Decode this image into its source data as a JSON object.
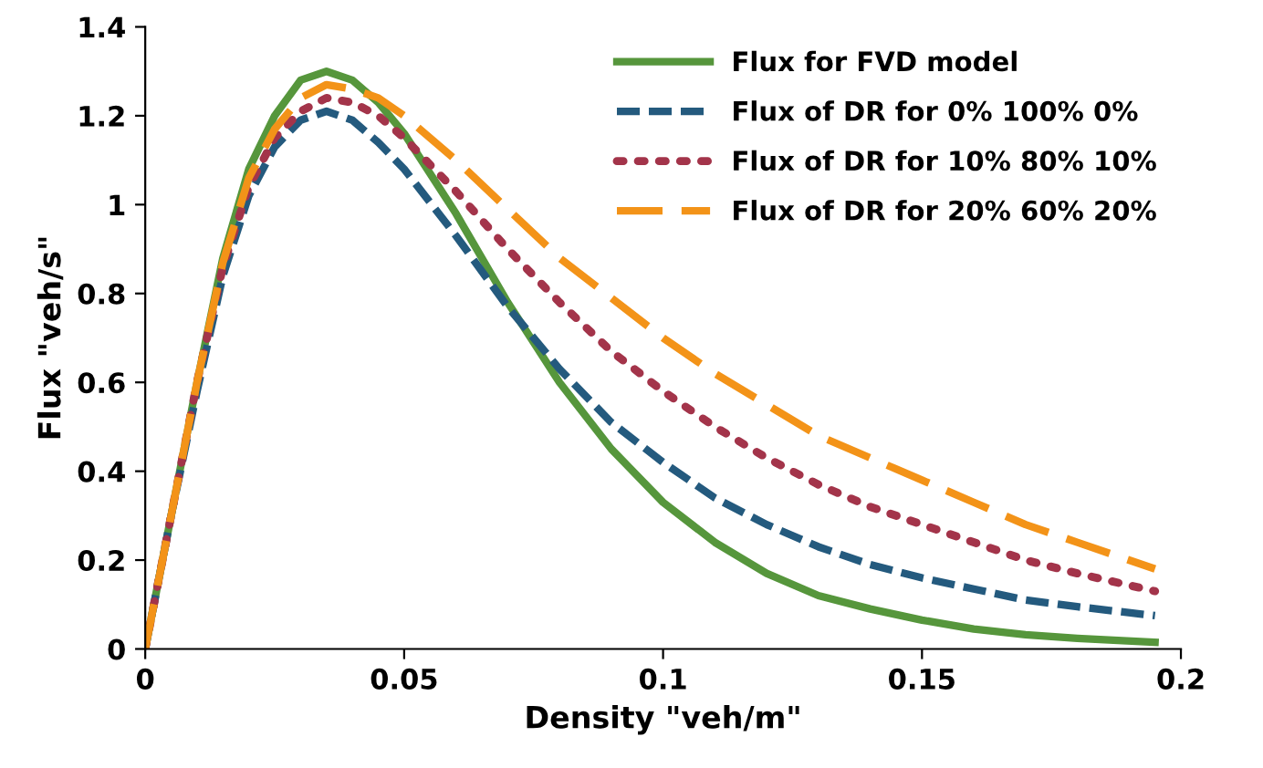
{
  "chart_data": {
    "type": "line",
    "xlabel": "Density \"veh/m\"",
    "ylabel": "Flux \"veh/s\"",
    "x": [
      0,
      0.005,
      0.01,
      0.015,
      0.02,
      0.025,
      0.03,
      0.035,
      0.04,
      0.045,
      0.05,
      0.06,
      0.07,
      0.08,
      0.09,
      0.1,
      0.11,
      0.12,
      0.13,
      0.14,
      0.15,
      0.16,
      0.17,
      0.18,
      0.195
    ],
    "series": [
      {
        "name": "Flux for FVD model",
        "color": "#56963c",
        "line_style": "solid",
        "values": [
          0,
          0.3,
          0.6,
          0.88,
          1.08,
          1.2,
          1.28,
          1.3,
          1.28,
          1.23,
          1.16,
          0.98,
          0.78,
          0.6,
          0.45,
          0.33,
          0.24,
          0.17,
          0.12,
          0.09,
          0.065,
          0.045,
          0.032,
          0.024,
          0.015
        ]
      },
      {
        "name": "Flux of DR for 0% 100% 0%",
        "color": "#245a7e",
        "line_style": "dashed",
        "values": [
          0,
          0.3,
          0.58,
          0.84,
          1.02,
          1.13,
          1.19,
          1.21,
          1.19,
          1.14,
          1.08,
          0.93,
          0.77,
          0.63,
          0.51,
          0.42,
          0.34,
          0.28,
          0.23,
          0.19,
          0.16,
          0.135,
          0.11,
          0.095,
          0.075
        ]
      },
      {
        "name": "Flux of DR for 10% 80% 10%",
        "color": "#a3344a",
        "line_style": "dotted",
        "values": [
          0,
          0.3,
          0.6,
          0.86,
          1.04,
          1.15,
          1.21,
          1.24,
          1.23,
          1.2,
          1.15,
          1.03,
          0.9,
          0.78,
          0.67,
          0.58,
          0.5,
          0.43,
          0.37,
          0.32,
          0.28,
          0.24,
          0.2,
          0.17,
          0.13
        ]
      },
      {
        "name": "Flux of DR for 20% 60% 20%",
        "color": "#f39318",
        "line_style": "dashed",
        "values": [
          0,
          0.3,
          0.6,
          0.87,
          1.06,
          1.17,
          1.24,
          1.27,
          1.26,
          1.24,
          1.2,
          1.1,
          0.99,
          0.88,
          0.79,
          0.7,
          0.62,
          0.55,
          0.48,
          0.43,
          0.38,
          0.33,
          0.28,
          0.24,
          0.18
        ]
      }
    ],
    "xlim": [
      0,
      0.2
    ],
    "xticks": [
      0,
      0.05,
      0.1,
      0.15,
      0.2
    ],
    "ylim": [
      0,
      1.4
    ],
    "yticks": [
      0,
      0.2,
      0.4,
      0.6,
      0.8,
      1,
      1.2,
      1.4
    ],
    "grid": false,
    "legend": "top right",
    "marker": "none"
  }
}
